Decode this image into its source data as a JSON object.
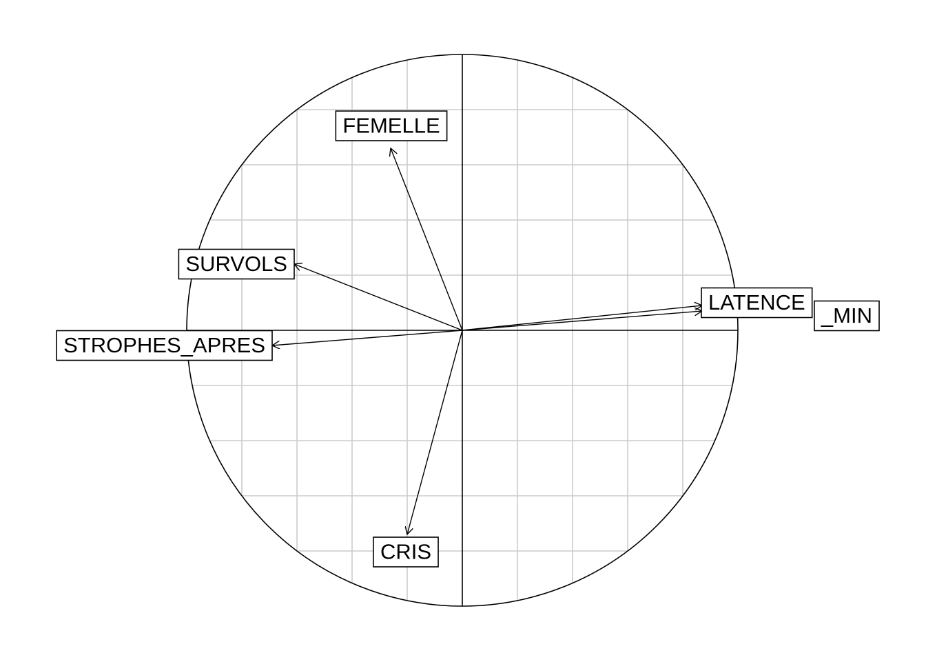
{
  "chart_data": {
    "type": "scatter",
    "title": "",
    "xlabel": "",
    "ylabel": "",
    "xlim": [
      -1,
      1
    ],
    "ylim": [
      -1,
      1
    ],
    "grid": true,
    "grid_step": 0.2,
    "unit_circle": true,
    "variables": [
      {
        "name": "FEMELLE",
        "x": -0.26,
        "y": 0.66
      },
      {
        "name": "SURVOLS",
        "x": -0.61,
        "y": 0.24
      },
      {
        "name": "STROPHES_APRES",
        "x": -0.69,
        "y": -0.055
      },
      {
        "name": "CRIS",
        "x": -0.2,
        "y": -0.74
      },
      {
        "name": "LATENCE",
        "x": 0.87,
        "y": 0.09
      },
      {
        "name": "STROPHES_MIN",
        "x": 0.87,
        "y": 0.07,
        "label_shown": "_MIN"
      }
    ],
    "colors": {
      "grid": "#cccccc",
      "axes": "#000000",
      "background": "#ffffff"
    }
  }
}
